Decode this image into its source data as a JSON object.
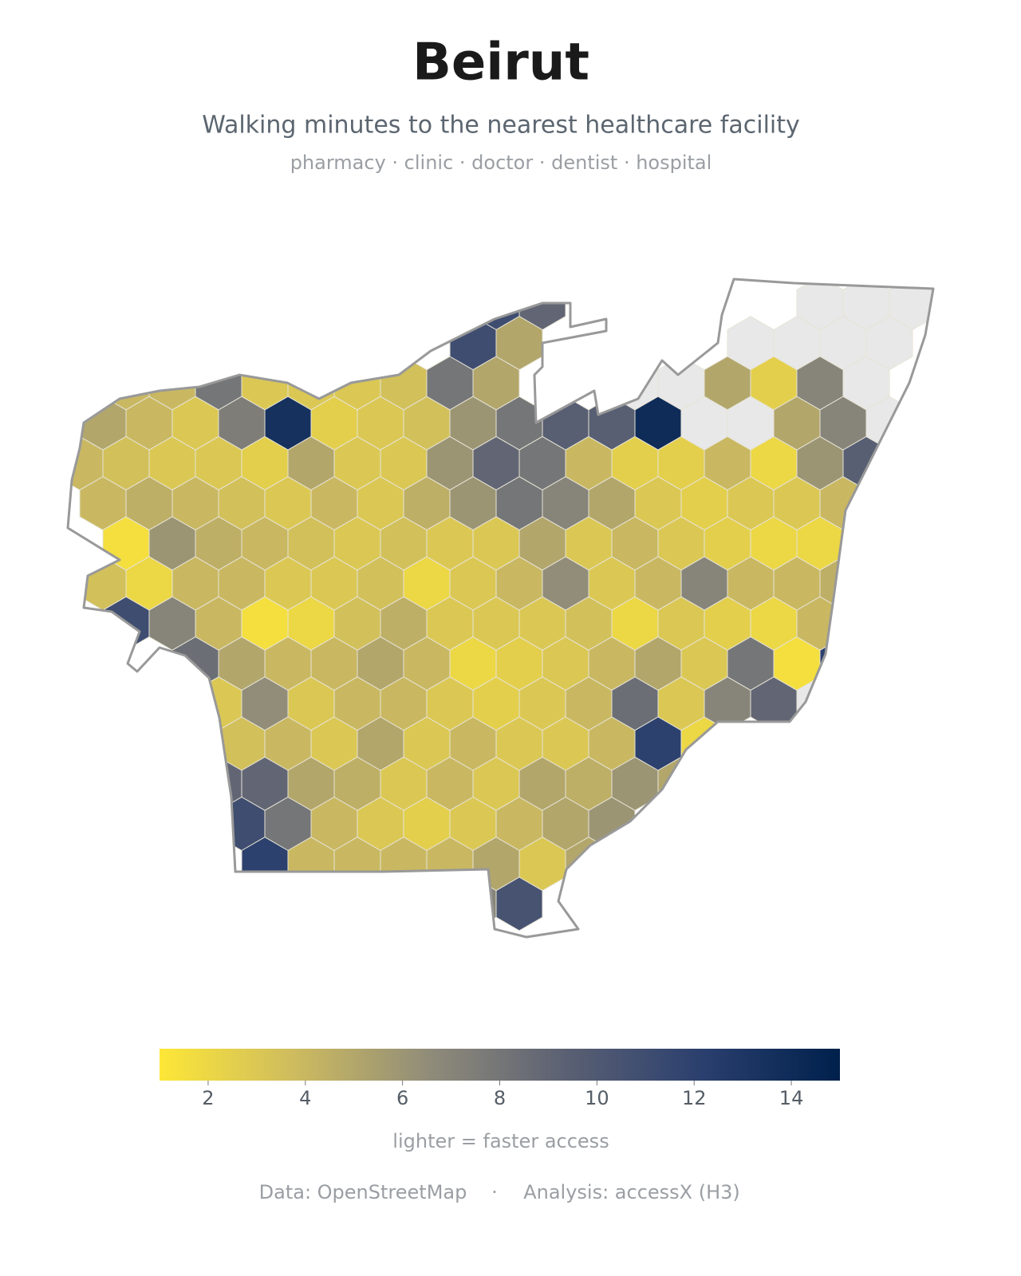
{
  "map": {
    "title": "Beirut",
    "subtitle": "Walking minutes to the nearest healthcare facility",
    "categories_note": "pharmacy · clinic · doctor · dentist · hospital",
    "hexes": {
      "values": [
        11,
        9,
        null,
        null,
        null,
        11,
        5,
        null,
        null,
        null,
        null,
        4,
        4,
        8,
        3,
        3,
        3,
        3.5,
        8,
        5,
        null,
        null,
        5,
        2.5,
        7,
        null,
        5,
        4,
        3,
        7.5,
        13.5,
        2.5,
        3,
        3.5,
        6,
        8,
        9.5,
        9.5,
        14,
        null,
        null,
        5,
        7,
        null,
        4,
        3.5,
        3,
        3,
        2.5,
        5,
        3,
        3,
        6,
        9,
        8,
        4,
        2.5,
        2.5,
        4,
        2,
        6,
        9.5,
        4,
        4.5,
        4,
        3.5,
        3,
        4,
        3,
        4.5,
        6,
        8,
        7,
        5,
        3,
        2.5,
        3,
        3,
        4,
        1.5,
        6,
        4.5,
        4,
        3.5,
        3,
        3.5,
        3,
        3,
        5,
        3,
        4,
        3,
        2.5,
        2,
        2,
        9.5,
        3.5,
        2,
        4,
        4,
        3,
        3,
        3.5,
        2,
        3,
        4,
        6.5,
        3,
        4,
        7,
        4,
        4,
        4.5,
        11,
        7,
        4,
        1.5,
        2,
        3.5,
        4.5,
        3,
        3,
        3,
        3.5,
        2,
        3,
        2.5,
        2,
        4,
        8,
        8.5,
        5,
        4,
        4,
        5,
        4,
        2,
        2.5,
        3,
        4,
        5,
        3,
        8,
        1.5,
        12,
        3,
        6.5,
        3,
        4,
        4,
        3,
        2.5,
        3,
        4,
        8.5,
        3,
        7,
        9,
        null,
        3.5,
        4,
        3,
        5,
        3,
        4,
        3,
        3,
        4,
        12,
        2,
        9,
        9,
        5,
        4.5,
        3,
        4,
        3,
        5,
        4.5,
        6,
        5,
        11,
        8,
        4,
        3,
        2.5,
        3,
        4,
        5,
        6,
        12,
        4,
        4,
        4,
        4,
        5,
        3,
        5,
        7,
        10.5
      ],
      "colors": [
        "#fde737",
        "#cdbb5f",
        "#8f8b7a",
        "#5a6073",
        "#2a3f6e",
        "#00204c"
      ],
      "no_data_color": "#e8e8e8"
    },
    "colorbar": {
      "lim": [
        1,
        15
      ],
      "ticks": [
        2,
        4,
        6,
        8,
        10,
        12,
        14
      ],
      "label": "lighter = faster access"
    },
    "footer": {
      "source": "Data: OpenStreetMap",
      "separator": "·",
      "analysis": "Analysis: accessX (H3)"
    }
  }
}
